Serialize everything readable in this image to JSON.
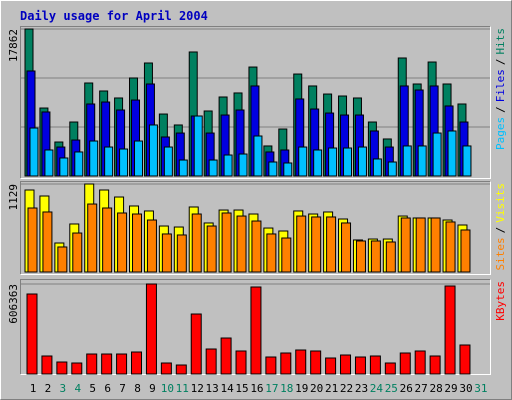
{
  "chart_data": [
    {
      "type": "bar",
      "title": "Daily usage for April 2004",
      "ylim": [
        0,
        17862
      ],
      "yticks": [
        17862
      ],
      "legend_separator": "/",
      "series": [
        {
          "name": "Hits",
          "color": "#008060",
          "values": [
            17862,
            8260,
            4130,
            6560,
            11300,
            10330,
            9480,
            11910,
            13730,
            7530,
            6200,
            15070,
            7900,
            9600,
            10090,
            13240,
            3650,
            5710,
            12390,
            10940,
            9960,
            9720,
            9480,
            6560,
            4500,
            14340,
            11180,
            13850,
            11180,
            8750,
            null
          ]
        },
        {
          "name": "Files",
          "color": "#0000e0",
          "values": [
            12760,
            7780,
            3520,
            4370,
            8750,
            8990,
            8020,
            9230,
            11180,
            4740,
            5220,
            7290,
            5220,
            7410,
            8020,
            10940,
            2920,
            3160,
            9360,
            8140,
            7650,
            7410,
            7410,
            5470,
            3520,
            10940,
            10450,
            10940,
            8510,
            6560,
            null
          ]
        },
        {
          "name": "Pages",
          "color": "#00c0ff",
          "values": [
            5830,
            3160,
            2190,
            2920,
            4250,
            3520,
            3280,
            4250,
            6200,
            3520,
            1940,
            7290,
            1940,
            2550,
            2670,
            4860,
            1700,
            1580,
            3520,
            3160,
            3400,
            3400,
            3520,
            2070,
            1700,
            3650,
            3650,
            5220,
            5470,
            3650,
            null
          ]
        }
      ]
    },
    {
      "type": "bar",
      "ylim": [
        0,
        1129
      ],
      "yticks": [
        1129
      ],
      "legend_separator": "/",
      "series": [
        {
          "name": "Visits",
          "color": "#ffff00",
          "values": [
            1052,
            975,
            372,
            616,
            1129,
            1052,
            962,
            847,
            783,
            590,
            577,
            834,
            629,
            795,
            795,
            744,
            564,
            526,
            783,
            744,
            770,
            680,
            411,
            423,
            423,
            718,
            693,
            693,
            667,
            603,
            null
          ]
        },
        {
          "name": "Sites",
          "color": "#ff8000",
          "values": [
            821,
            770,
            321,
            500,
            872,
            821,
            757,
            744,
            667,
            488,
            475,
            744,
            590,
            757,
            718,
            654,
            488,
            436,
            718,
            706,
            706,
            629,
            398,
            398,
            385,
            693,
            693,
            693,
            642,
            539,
            null
          ]
        }
      ]
    },
    {
      "type": "bar",
      "ylim": [
        0,
        606363
      ],
      "yticks": [
        606363
      ],
      "categories": [
        "1",
        "2",
        "3",
        "4",
        "5",
        "6",
        "7",
        "8",
        "9",
        "10",
        "11",
        "12",
        "13",
        "14",
        "15",
        "16",
        "17",
        "18",
        "19",
        "20",
        "21",
        "22",
        "23",
        "24",
        "25",
        "26",
        "27",
        "28",
        "29",
        "30",
        "31"
      ],
      "category_colors": [
        "#000000",
        "#000000",
        "#008060",
        "#008060",
        "#000000",
        "#000000",
        "#000000",
        "#000000",
        "#000000",
        "#008060",
        "#008060",
        "#000000",
        "#000000",
        "#000000",
        "#000000",
        "#000000",
        "#008060",
        "#008060",
        "#000000",
        "#000000",
        "#000000",
        "#000000",
        "#000000",
        "#008060",
        "#008060",
        "#000000",
        "#000000",
        "#000000",
        "#000000",
        "#000000",
        "#008060"
      ],
      "series": [
        {
          "name": "KBytes",
          "color": "#ff0000",
          "values": [
            539000,
            121300,
            80800,
            74100,
            134700,
            134700,
            134700,
            148200,
            606363,
            74100,
            60600,
            404200,
            168400,
            242500,
            155000,
            586200,
            114500,
            141500,
            161700,
            155000,
            107800,
            128000,
            114500,
            121300,
            74100,
            141500,
            155000,
            121300,
            592900,
            195400,
            null
          ]
        }
      ]
    }
  ]
}
